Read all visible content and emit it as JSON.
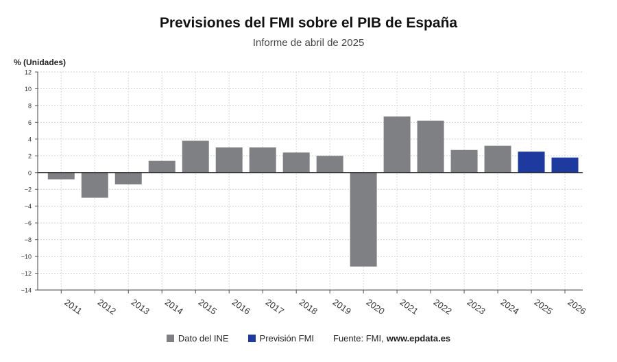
{
  "header": {
    "title": "Previsiones del FMI sobre el PIB de España",
    "subtitle": "Informe de abril de 2025",
    "ylabel": "% (Unidades)"
  },
  "legend": {
    "items": [
      {
        "label": "Dato del INE",
        "color": "#7f8083"
      },
      {
        "label": "Previsión FMI",
        "color": "#1f3a9e"
      }
    ],
    "source_prefix": "Fuente: FMI,",
    "source_url": "www.epdata.es"
  },
  "chart_data": {
    "type": "bar",
    "categories": [
      "2011",
      "2012",
      "2013",
      "2014",
      "2015",
      "2016",
      "2017",
      "2018",
      "2019",
      "2020",
      "2021",
      "2022",
      "2023",
      "2024",
      "2025",
      "2026"
    ],
    "series": [
      {
        "name": "Dato del INE",
        "color": "#7f8083",
        "values": [
          -0.8,
          -3.0,
          -1.4,
          1.4,
          3.8,
          3.0,
          3.0,
          2.4,
          2.0,
          -11.2,
          6.7,
          6.2,
          2.7,
          3.2,
          null,
          null
        ]
      },
      {
        "name": "Previsión FMI",
        "color": "#1f3a9e",
        "values": [
          null,
          null,
          null,
          null,
          null,
          null,
          null,
          null,
          null,
          null,
          null,
          null,
          null,
          null,
          2.5,
          1.8
        ]
      }
    ],
    "title": "Previsiones del FMI sobre el PIB de España",
    "subtitle": "Informe de abril de 2025",
    "xlabel": "",
    "ylabel": "% (Unidades)",
    "ylim": [
      -14,
      12
    ],
    "yticks": [
      12,
      10,
      8,
      6,
      4,
      2,
      0,
      -2,
      -4,
      -6,
      -8,
      -10,
      -12,
      -14
    ],
    "grid": true,
    "legend_position": "bottom"
  }
}
